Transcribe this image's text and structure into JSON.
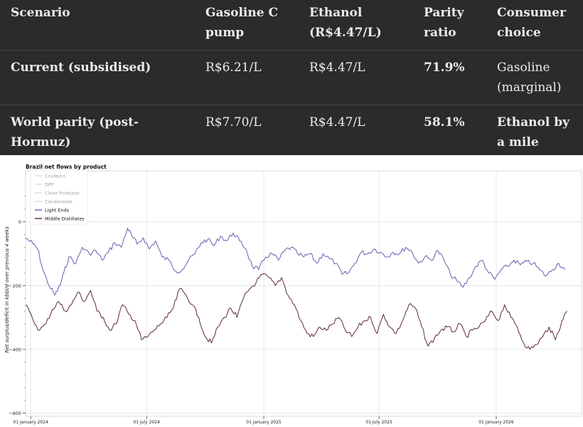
{
  "table": {
    "headers": [
      "Scenario",
      "Gasoline C pump",
      "Ethanol (R$4.47/L)",
      "Parity ratio",
      "Consumer choice"
    ],
    "rows": [
      {
        "scenario": "Current (subsidised)",
        "gasoline": "R$6.21/L",
        "ethanol": "R$4.47/L",
        "parity": "71.9%",
        "choice": "Gasoline (marginal)"
      },
      {
        "scenario": "World parity (post-Hormuz)",
        "gasoline": "R$7.70/L",
        "ethanol": "R$4.47/L",
        "parity": "58.1%",
        "choice": "Ethanol by a mile"
      }
    ]
  },
  "chart_data": {
    "type": "line",
    "title": "Brazil net flows by product",
    "ylabel": "Net surplus/deficit in kbbl/d over previous 4 weeks",
    "ylim": [
      -610,
      160
    ],
    "xlim": [
      "2023-12-24",
      "2026-05-15"
    ],
    "x_ticks": [
      {
        "date": "2024-01-01",
        "label": "01 January 2024"
      },
      {
        "date": "2024-07-01",
        "label": "01 July 2024"
      },
      {
        "date": "2025-01-01",
        "label": "01 January 2025"
      },
      {
        "date": "2025-07-01",
        "label": "01 July 2025"
      },
      {
        "date": "2026-01-01",
        "label": "01 January 2026"
      }
    ],
    "y_ticks": [
      0,
      -200,
      -400,
      -600
    ],
    "grid": true,
    "legend_position": "top-left",
    "colors": {
      "light_ends": "#7257b0",
      "middle_distillates": "#5e2a2e",
      "grid": "#dde0e6"
    },
    "legend": [
      {
        "name": "Crude/co",
        "color": "#9fd4e8",
        "active": false
      },
      {
        "name": "DPP",
        "color": "#f0b7a8",
        "active": false
      },
      {
        "name": "Clean Products",
        "color": "#9ccfb0",
        "active": false
      },
      {
        "name": "Condensate",
        "color": "#e4a5e0",
        "active": false
      },
      {
        "name": "Light Ends",
        "color": "#7257b0",
        "active": true
      },
      {
        "name": "Middle Distillates",
        "color": "#5e2a2e",
        "active": true
      }
    ],
    "series": [
      {
        "name": "Light Ends",
        "points": [
          [
            "2023-12-24",
            -50
          ],
          [
            "2024-01-05",
            -70
          ],
          [
            "2024-01-12",
            -85
          ],
          [
            "2024-01-20",
            -150
          ],
          [
            "2024-01-30",
            -200
          ],
          [
            "2024-02-08",
            -230
          ],
          [
            "2024-02-16",
            -200
          ],
          [
            "2024-02-22",
            -160
          ],
          [
            "2024-03-01",
            -110
          ],
          [
            "2024-03-12",
            -130
          ],
          [
            "2024-03-22",
            -80
          ],
          [
            "2024-04-02",
            -100
          ],
          [
            "2024-04-12",
            -90
          ],
          [
            "2024-04-22",
            -120
          ],
          [
            "2024-05-02",
            -95
          ],
          [
            "2024-05-12",
            -65
          ],
          [
            "2024-05-22",
            -80
          ],
          [
            "2024-06-01",
            -20
          ],
          [
            "2024-06-08",
            -45
          ],
          [
            "2024-06-16",
            -70
          ],
          [
            "2024-06-26",
            -50
          ],
          [
            "2024-07-05",
            -85
          ],
          [
            "2024-07-15",
            -60
          ],
          [
            "2024-07-25",
            -110
          ],
          [
            "2024-08-05",
            -120
          ],
          [
            "2024-08-16",
            -155
          ],
          [
            "2024-08-26",
            -150
          ],
          [
            "2024-09-05",
            -120
          ],
          [
            "2024-09-15",
            -100
          ],
          [
            "2024-09-25",
            -65
          ],
          [
            "2024-10-05",
            -55
          ],
          [
            "2024-10-15",
            -75
          ],
          [
            "2024-10-25",
            -45
          ],
          [
            "2024-11-04",
            -60
          ],
          [
            "2024-11-14",
            -35
          ],
          [
            "2024-11-24",
            -60
          ],
          [
            "2024-12-04",
            -85
          ],
          [
            "2024-12-14",
            -140
          ],
          [
            "2024-12-24",
            -150
          ],
          [
            "2025-01-04",
            -110
          ],
          [
            "2025-01-14",
            -100
          ],
          [
            "2025-01-24",
            -120
          ],
          [
            "2025-02-03",
            -90
          ],
          [
            "2025-02-13",
            -80
          ],
          [
            "2025-02-23",
            -100
          ],
          [
            "2025-03-05",
            -110
          ],
          [
            "2025-03-15",
            -100
          ],
          [
            "2025-03-25",
            -130
          ],
          [
            "2025-04-04",
            -100
          ],
          [
            "2025-04-14",
            -115
          ],
          [
            "2025-04-24",
            -130
          ],
          [
            "2025-05-04",
            -165
          ],
          [
            "2025-05-14",
            -160
          ],
          [
            "2025-05-24",
            -130
          ],
          [
            "2025-06-03",
            -95
          ],
          [
            "2025-06-13",
            -100
          ],
          [
            "2025-06-23",
            -85
          ],
          [
            "2025-07-03",
            -95
          ],
          [
            "2025-07-13",
            -110
          ],
          [
            "2025-07-23",
            -95
          ],
          [
            "2025-08-02",
            -100
          ],
          [
            "2025-08-12",
            -80
          ],
          [
            "2025-08-22",
            -95
          ],
          [
            "2025-09-01",
            -130
          ],
          [
            "2025-09-11",
            -110
          ],
          [
            "2025-09-21",
            -120
          ],
          [
            "2025-10-01",
            -90
          ],
          [
            "2025-10-11",
            -120
          ],
          [
            "2025-10-21",
            -165
          ],
          [
            "2025-10-31",
            -185
          ],
          [
            "2025-11-10",
            -205
          ],
          [
            "2025-11-20",
            -175
          ],
          [
            "2025-11-30",
            -140
          ],
          [
            "2025-12-10",
            -120
          ],
          [
            "2025-12-20",
            -160
          ],
          [
            "2025-12-30",
            -180
          ],
          [
            "2026-01-09",
            -150
          ],
          [
            "2026-01-19",
            -140
          ],
          [
            "2026-01-29",
            -120
          ],
          [
            "2026-02-08",
            -135
          ],
          [
            "2026-02-18",
            -125
          ],
          [
            "2026-02-28",
            -130
          ],
          [
            "2026-03-10",
            -150
          ],
          [
            "2026-03-20",
            -170
          ],
          [
            "2026-03-30",
            -150
          ],
          [
            "2026-04-09",
            -130
          ],
          [
            "2026-04-19",
            -150
          ]
        ]
      },
      {
        "name": "Middle Distillates",
        "points": [
          [
            "2023-12-24",
            -260
          ],
          [
            "2024-01-05",
            -310
          ],
          [
            "2024-01-15",
            -340
          ],
          [
            "2024-01-25",
            -320
          ],
          [
            "2024-02-04",
            -275
          ],
          [
            "2024-02-14",
            -250
          ],
          [
            "2024-02-24",
            -280
          ],
          [
            "2024-03-05",
            -260
          ],
          [
            "2024-03-15",
            -220
          ],
          [
            "2024-03-25",
            -250
          ],
          [
            "2024-04-04",
            -215
          ],
          [
            "2024-04-14",
            -280
          ],
          [
            "2024-04-24",
            -300
          ],
          [
            "2024-05-04",
            -340
          ],
          [
            "2024-05-14",
            -320
          ],
          [
            "2024-05-24",
            -260
          ],
          [
            "2024-06-03",
            -290
          ],
          [
            "2024-06-13",
            -310
          ],
          [
            "2024-06-23",
            -370
          ],
          [
            "2024-07-03",
            -360
          ],
          [
            "2024-07-13",
            -340
          ],
          [
            "2024-07-23",
            -320
          ],
          [
            "2024-08-02",
            -300
          ],
          [
            "2024-08-12",
            -270
          ],
          [
            "2024-08-22",
            -210
          ],
          [
            "2024-09-01",
            -230
          ],
          [
            "2024-09-11",
            -260
          ],
          [
            "2024-09-21",
            -300
          ],
          [
            "2024-10-01",
            -360
          ],
          [
            "2024-10-11",
            -380
          ],
          [
            "2024-10-21",
            -330
          ],
          [
            "2024-10-31",
            -300
          ],
          [
            "2024-11-10",
            -270
          ],
          [
            "2024-11-20",
            -300
          ],
          [
            "2024-11-30",
            -240
          ],
          [
            "2024-12-10",
            -210
          ],
          [
            "2024-12-20",
            -190
          ],
          [
            "2024-12-30",
            -165
          ],
          [
            "2025-01-09",
            -175
          ],
          [
            "2025-01-19",
            -200
          ],
          [
            "2025-01-29",
            -175
          ],
          [
            "2025-02-08",
            -230
          ],
          [
            "2025-02-18",
            -260
          ],
          [
            "2025-02-28",
            -310
          ],
          [
            "2025-03-10",
            -350
          ],
          [
            "2025-03-20",
            -360
          ],
          [
            "2025-03-30",
            -330
          ],
          [
            "2025-04-09",
            -340
          ],
          [
            "2025-04-19",
            -320
          ],
          [
            "2025-04-29",
            -300
          ],
          [
            "2025-05-09",
            -340
          ],
          [
            "2025-05-19",
            -360
          ],
          [
            "2025-05-29",
            -330
          ],
          [
            "2025-06-08",
            -310
          ],
          [
            "2025-06-18",
            -300
          ],
          [
            "2025-06-28",
            -350
          ],
          [
            "2025-07-08",
            -290
          ],
          [
            "2025-07-18",
            -330
          ],
          [
            "2025-07-28",
            -350
          ],
          [
            "2025-08-07",
            -310
          ],
          [
            "2025-08-17",
            -260
          ],
          [
            "2025-08-27",
            -270
          ],
          [
            "2025-09-06",
            -330
          ],
          [
            "2025-09-16",
            -390
          ],
          [
            "2025-09-26",
            -365
          ],
          [
            "2025-10-06",
            -340
          ],
          [
            "2025-10-16",
            -330
          ],
          [
            "2025-10-26",
            -345
          ],
          [
            "2025-11-05",
            -320
          ],
          [
            "2025-11-15",
            -360
          ],
          [
            "2025-11-25",
            -340
          ],
          [
            "2025-12-05",
            -330
          ],
          [
            "2025-12-15",
            -310
          ],
          [
            "2025-12-25",
            -280
          ],
          [
            "2026-01-04",
            -310
          ],
          [
            "2026-01-14",
            -260
          ],
          [
            "2026-01-24",
            -300
          ],
          [
            "2026-02-03",
            -330
          ],
          [
            "2026-02-13",
            -380
          ],
          [
            "2026-02-23",
            -400
          ],
          [
            "2026-03-05",
            -385
          ],
          [
            "2026-03-15",
            -360
          ],
          [
            "2026-03-25",
            -330
          ],
          [
            "2026-04-04",
            -370
          ],
          [
            "2026-04-14",
            -310
          ],
          [
            "2026-04-22",
            -280
          ]
        ]
      }
    ]
  }
}
